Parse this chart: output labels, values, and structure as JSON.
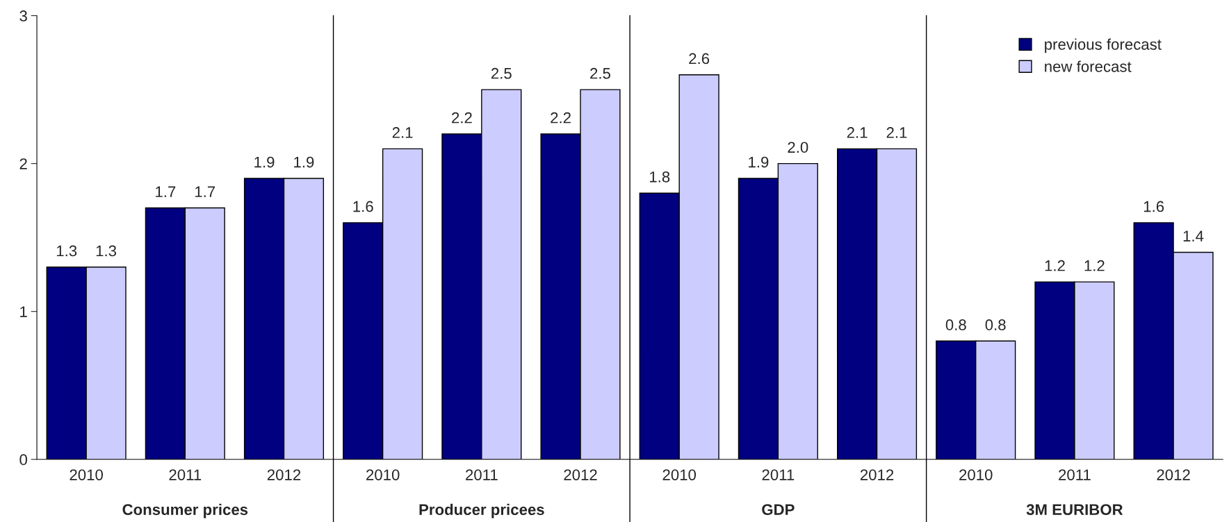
{
  "chart_data": {
    "type": "bar",
    "categories": [
      "2010",
      "2011",
      "2012",
      "2010",
      "2011",
      "2012",
      "2010",
      "2011",
      "2012",
      "2010",
      "2011",
      "2012"
    ],
    "series": [
      {
        "name": "previous forecast",
        "color": "#000080",
        "values": [
          1.3,
          1.7,
          1.9,
          1.6,
          2.2,
          2.2,
          1.8,
          1.9,
          2.1,
          0.8,
          1.2,
          1.6
        ],
        "value_labels": [
          "1.3",
          "1.7",
          "1.9",
          "1.6",
          "2.2",
          "2.2",
          "1.8",
          "1.9",
          "2.1",
          "0.8",
          "1.2",
          "1.6"
        ]
      },
      {
        "name": "new forecast",
        "color": "#ccccff",
        "values": [
          1.3,
          1.7,
          1.9,
          2.1,
          2.5,
          2.5,
          2.6,
          2.0,
          2.1,
          0.8,
          1.2,
          1.4
        ],
        "value_labels": [
          "1.3",
          "1.7",
          "1.9",
          "2.1",
          "2.5",
          "2.5",
          "2.6",
          "2.0",
          "2.1",
          "0.8",
          "1.2",
          "1.4"
        ]
      }
    ],
    "annotations": [
      "Consumer prices",
      "Producer pricees",
      "GDP",
      "3M EURIBOR"
    ],
    "ylim": [
      0,
      3
    ],
    "yticks": [
      0,
      1,
      2,
      3
    ],
    "grid": false,
    "legend": "top right"
  }
}
